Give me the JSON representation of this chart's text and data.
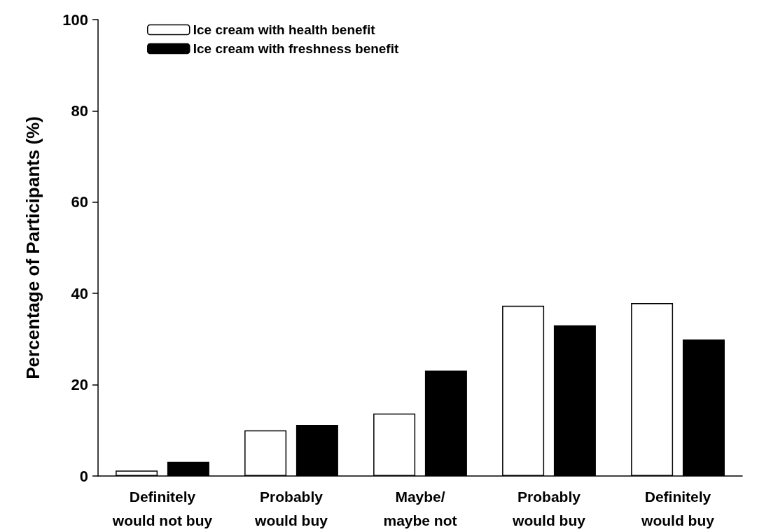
{
  "chart_data": {
    "type": "bar",
    "ylabel": "Percentage of Participants (%)",
    "categories": [
      "Definitely\nwould not buy",
      "Probably\nwould buy",
      "Maybe/\nmaybe not",
      "Probably\nwould buy",
      "Definitely\nwould buy"
    ],
    "series": [
      {
        "name": "Ice cream with health benefit",
        "color": "#ffffff",
        "values": [
          1.2,
          10,
          13.7,
          37.3,
          37.9
        ]
      },
      {
        "name": "Ice cream with freshness benefit",
        "color": "#000000",
        "values": [
          3.1,
          11.2,
          23.1,
          33,
          29.9
        ]
      }
    ],
    "ylim": [
      0,
      100
    ],
    "yticks": [
      0,
      20,
      40,
      60,
      80,
      100
    ],
    "grid": false,
    "legend": "top left"
  }
}
